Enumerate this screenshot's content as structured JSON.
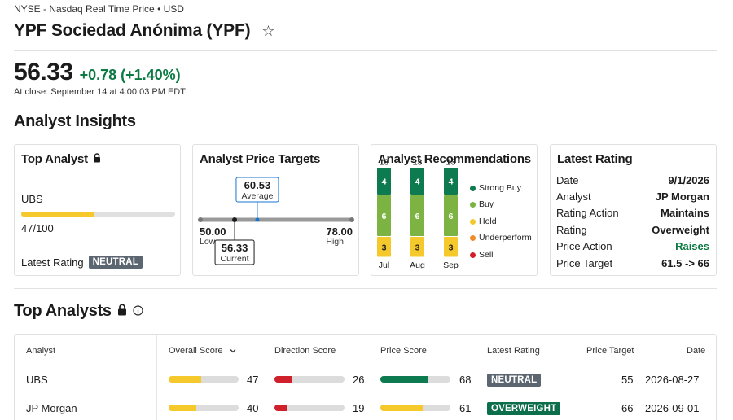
{
  "header": {
    "exchange": "NYSE - Nasdaq Real Time Price • USD",
    "title": "YPF Sociedad Anónima (YPF)",
    "price": "56.33",
    "change": "+0.78",
    "change_pct": "(+1.40%)",
    "close_info": "At close: September 14 at 4:00:03 PM EDT"
  },
  "analyst_insights": {
    "title": "Analyst Insights",
    "top_analyst": {
      "title": "Top Analyst",
      "name": "UBS",
      "score_text": "47/100",
      "score_fraction": 0.47,
      "rating_label": "Latest Rating",
      "rating": "NEUTRAL"
    },
    "price_targets": {
      "title": "Analyst Price Targets",
      "low": "50.00",
      "low_label": "Low",
      "high": "78.00",
      "high_label": "High",
      "average": "60.53",
      "average_label": "Average",
      "current": "56.33",
      "current_label": "Current",
      "low_num": 50.0,
      "high_num": 78.0,
      "average_num": 60.53,
      "current_num": 56.33
    },
    "recommendations": {
      "title": "Analyst Recommendations",
      "months": [
        {
          "label": "Jul",
          "total": "13",
          "strong_buy": 4,
          "buy": 6,
          "hold": 3
        },
        {
          "label": "Aug",
          "total": "13",
          "strong_buy": 4,
          "buy": 6,
          "hold": 3
        },
        {
          "label": "Sep",
          "total": "13",
          "strong_buy": 4,
          "buy": 6,
          "hold": 3
        }
      ],
      "legend": [
        "Strong Buy",
        "Buy",
        "Hold",
        "Underperform",
        "Sell"
      ],
      "colors": {
        "strong_buy": "#0d7a4f",
        "buy": "#7cb342",
        "hold": "#f5c92b",
        "underperform": "#f08a24",
        "sell": "#d0202b"
      }
    },
    "latest_rating": {
      "title": "Latest Rating",
      "rows": [
        {
          "label": "Date",
          "value": "9/1/2026"
        },
        {
          "label": "Analyst",
          "value": "JP Morgan"
        },
        {
          "label": "Rating Action",
          "value": "Maintains"
        },
        {
          "label": "Rating",
          "value": "Overweight"
        },
        {
          "label": "Price Action",
          "value": "Raises"
        },
        {
          "label": "Price Target",
          "value": "61.5 -> 66"
        }
      ]
    }
  },
  "top_analysts": {
    "title": "Top Analysts",
    "columns": {
      "analyst": "Analyst",
      "overall": "Overall Score",
      "direction": "Direction Score",
      "price": "Price Score",
      "latest_rating": "Latest Rating",
      "price_target": "Price Target",
      "date": "Date"
    },
    "rows": [
      {
        "analyst": "UBS",
        "overall": "47",
        "direction": "26",
        "price": "68",
        "rating": "NEUTRAL",
        "price_target": "55",
        "date": "2026-08-27"
      },
      {
        "analyst": "JP Morgan",
        "overall": "40",
        "direction": "19",
        "price": "61",
        "rating": "OVERWEIGHT",
        "price_target": "66",
        "date": "2026-09-01"
      }
    ]
  },
  "colors": {
    "positive": "#0c7a43",
    "score_yellow": "#f5c92b",
    "score_red": "#d0202b",
    "score_green": "#0d7a4f",
    "badge_neutral": "#5c6670",
    "badge_overweight": "#0d6e4b"
  }
}
